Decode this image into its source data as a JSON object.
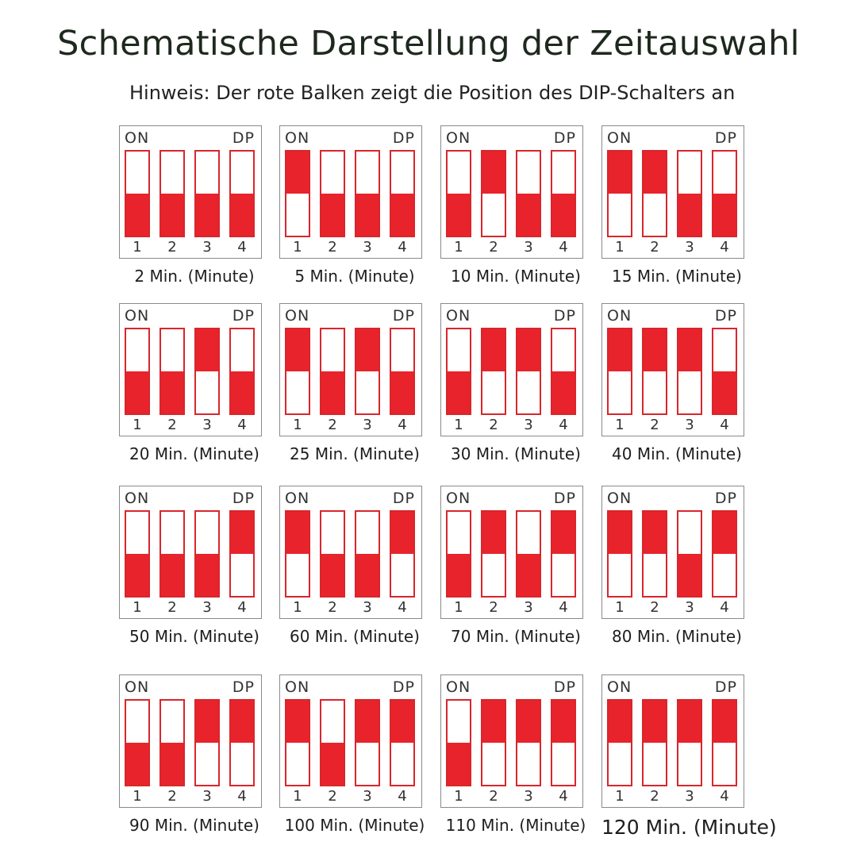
{
  "title": "Schematische Darstellung der Zeitauswahl",
  "note": "Hinweis: Der rote Balken zeigt die Position des DIP-Schalters an",
  "switch_labels": {
    "on": "ON",
    "dp": "DP",
    "numbers": [
      "1",
      "2",
      "3",
      "4"
    ]
  },
  "colors": {
    "switch_red": "#e8232b",
    "border": "#d8262c"
  },
  "settings": [
    {
      "caption": "2 Min. (Minute)",
      "switches": [
        "off",
        "off",
        "off",
        "off"
      ]
    },
    {
      "caption": "5 Min. (Minute)",
      "switches": [
        "on",
        "off",
        "off",
        "off"
      ]
    },
    {
      "caption": "10 Min. (Minute)",
      "switches": [
        "off",
        "on",
        "off",
        "off"
      ]
    },
    {
      "caption": "15 Min. (Minute)",
      "switches": [
        "on",
        "on",
        "off",
        "off"
      ]
    },
    {
      "caption": "20 Min. (Minute)",
      "switches": [
        "off",
        "off",
        "on",
        "off"
      ]
    },
    {
      "caption": "25 Min. (Minute)",
      "switches": [
        "on",
        "off",
        "on",
        "off"
      ]
    },
    {
      "caption": "30 Min. (Minute)",
      "switches": [
        "off",
        "on",
        "on",
        "off"
      ]
    },
    {
      "caption": "40 Min. (Minute)",
      "switches": [
        "on",
        "on",
        "on",
        "off"
      ]
    },
    {
      "caption": "50 Min. (Minute)",
      "switches": [
        "off",
        "off",
        "off",
        "on"
      ]
    },
    {
      "caption": "60 Min. (Minute)",
      "switches": [
        "on",
        "off",
        "off",
        "on"
      ]
    },
    {
      "caption": "70 Min. (Minute)",
      "switches": [
        "off",
        "on",
        "off",
        "on"
      ]
    },
    {
      "caption": "80 Min. (Minute)",
      "switches": [
        "on",
        "on",
        "off",
        "on"
      ]
    },
    {
      "caption": "90 Min. (Minute)",
      "switches": [
        "off",
        "off",
        "on",
        "on"
      ]
    },
    {
      "caption": "100 Min. (Minute)",
      "switches": [
        "on",
        "off",
        "on",
        "on"
      ]
    },
    {
      "caption": "110 Min. (Minute)",
      "switches": [
        "off",
        "on",
        "on",
        "on"
      ]
    },
    {
      "caption": "120 Min. (Minute)",
      "switches": [
        "on",
        "on",
        "on",
        "on"
      ]
    }
  ]
}
